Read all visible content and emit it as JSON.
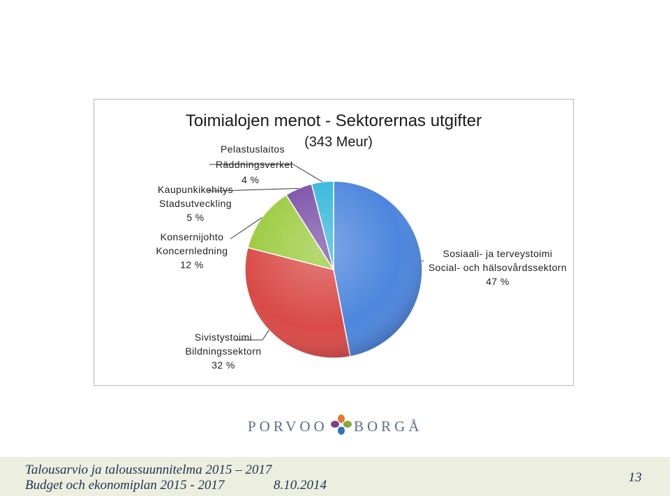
{
  "chart_data": {
    "type": "pie",
    "title": "Toimialojen menot - Sektorernas utgifter",
    "subtitle": "(343 Meur)",
    "slices": [
      {
        "label_fi": "Sosiaali- ja terveystoimi",
        "label_sv": "Social- och hälsovårdssektorn",
        "percent_label": "47 %",
        "value": 47,
        "color": "#4d86dd"
      },
      {
        "label_fi": "Sivistystoimi",
        "label_sv": "Bildningssektorn",
        "percent_label": "32 %",
        "value": 32,
        "color": "#d94a47"
      },
      {
        "label_fi": "Konsernijohto",
        "label_sv": "Koncernledning",
        "percent_label": "12 %",
        "value": 12,
        "color": "#9acb3c"
      },
      {
        "label_fi": "Kaupunkikehitys",
        "label_sv": "Stadsutveckling",
        "percent_label": "5 %",
        "value": 5,
        "color": "#7a4fa8"
      },
      {
        "label_fi": "Pelastuslaitos",
        "label_sv": "Räddningsverket",
        "percent_label": "4 %",
        "value": 4,
        "color": "#33b8db"
      }
    ]
  },
  "logo": {
    "left": "PORVOO",
    "right": "BORGÅ"
  },
  "footer": {
    "line1": "Talousarvio ja taloussuunnitelma 2015 – 2017",
    "line2": "Budget och ekonomiplan 2015 - 2017",
    "date": "8.10.2014",
    "page": "13"
  }
}
